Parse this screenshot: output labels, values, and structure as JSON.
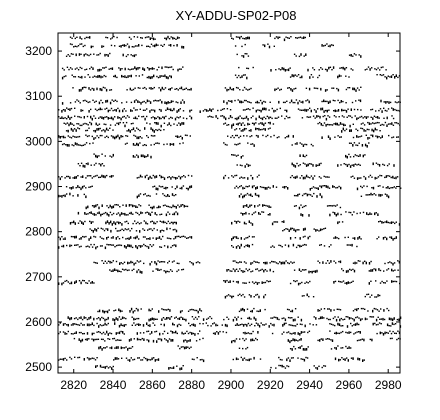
{
  "chart_data": {
    "type": "scatter",
    "title": "XY-ADDU-SP02-P08",
    "xlabel": "",
    "ylabel": "",
    "xlim": [
      2812,
      2986
    ],
    "ylim": [
      2487,
      3240
    ],
    "xticks": [
      2820,
      2840,
      2860,
      2880,
      2900,
      2920,
      2940,
      2960,
      2980
    ],
    "yticks": [
      2500,
      2600,
      2700,
      2800,
      2900,
      3000,
      3100,
      3200
    ],
    "grid": false,
    "marker": "black dot",
    "rows": [
      {
        "y": 3231,
        "segments": [
          [
            2818,
            2828
          ],
          [
            2836,
            2842
          ],
          [
            2848,
            2862
          ],
          [
            2866,
            2874
          ],
          [
            2900,
            2912
          ],
          [
            2922,
            2938
          ]
        ]
      },
      {
        "y": 3214,
        "segments": [
          [
            2818,
            2830
          ],
          [
            2834,
            2876
          ],
          [
            2902,
            2908
          ],
          [
            2916,
            2922
          ],
          [
            2946,
            2952
          ]
        ]
      },
      {
        "y": 3193,
        "segments": [
          [
            2816,
            2838
          ],
          [
            2844,
            2852
          ],
          [
            2902,
            2910
          ],
          [
            2932,
            2938
          ],
          [
            2960,
            2966
          ]
        ]
      },
      {
        "y": 3163,
        "segments": [
          [
            2814,
            2830
          ],
          [
            2832,
            2876
          ],
          [
            2902,
            2912
          ],
          [
            2920,
            2930
          ],
          [
            2938,
            2962
          ],
          [
            2968,
            2980
          ]
        ]
      },
      {
        "y": 3146,
        "segments": [
          [
            2814,
            2836
          ],
          [
            2840,
            2870
          ],
          [
            2902,
            2908
          ],
          [
            2930,
            2946
          ],
          [
            2954,
            2960
          ],
          [
            2974,
            2986
          ]
        ]
      },
      {
        "y": 3118,
        "segments": [
          [
            2816,
            2840
          ],
          [
            2846,
            2880
          ],
          [
            2896,
            2910
          ],
          [
            2922,
            2934
          ],
          [
            2938,
            2966
          ]
        ]
      },
      {
        "y": 3090,
        "segments": [
          [
            2814,
            2876
          ],
          [
            2896,
            2920
          ],
          [
            2924,
            2940
          ],
          [
            2946,
            2966
          ],
          [
            2976,
            2986
          ]
        ]
      },
      {
        "y": 3072,
        "segments": [
          [
            2812,
            2880
          ],
          [
            2884,
            2900
          ],
          [
            2906,
            2928
          ],
          [
            2934,
            2966
          ],
          [
            2970,
            2986
          ]
        ]
      },
      {
        "y": 3055,
        "segments": [
          [
            2812,
            2880
          ],
          [
            2888,
            2930
          ],
          [
            2936,
            2984
          ]
        ]
      },
      {
        "y": 3040,
        "segments": [
          [
            2814,
            2850
          ],
          [
            2856,
            2876
          ],
          [
            2896,
            2922
          ],
          [
            2944,
            2962
          ],
          [
            2966,
            2986
          ]
        ]
      },
      {
        "y": 3028,
        "segments": [
          [
            2816,
            2840
          ],
          [
            2846,
            2866
          ],
          [
            2900,
            2920
          ],
          [
            2956,
            2976
          ]
        ]
      },
      {
        "y": 3012,
        "segments": [
          [
            2812,
            2862
          ],
          [
            2870,
            2880
          ],
          [
            2898,
            2932
          ],
          [
            2946,
            2956
          ],
          [
            2962,
            2986
          ]
        ]
      },
      {
        "y": 2995,
        "segments": [
          [
            2814,
            2830
          ],
          [
            2846,
            2876
          ],
          [
            2896,
            2912
          ],
          [
            2930,
            2942
          ],
          [
            2960,
            2970
          ]
        ]
      },
      {
        "y": 2970,
        "segments": [
          [
            2830,
            2840
          ],
          [
            2850,
            2860
          ],
          [
            2900,
            2908
          ],
          [
            2934,
            2940
          ],
          [
            2958,
            2968
          ]
        ]
      },
      {
        "y": 2950,
        "segments": [
          [
            2822,
            2836
          ],
          [
            2902,
            2910
          ],
          [
            2930,
            2946
          ],
          [
            2954,
            2966
          ],
          [
            2972,
            2984
          ]
        ]
      },
      {
        "y": 2923,
        "segments": [
          [
            2812,
            2840
          ],
          [
            2852,
            2880
          ],
          [
            2896,
            2914
          ],
          [
            2930,
            2950
          ],
          [
            2960,
            2986
          ]
        ]
      },
      {
        "y": 2900,
        "segments": [
          [
            2816,
            2830
          ],
          [
            2860,
            2880
          ],
          [
            2900,
            2930
          ],
          [
            2940,
            2956
          ],
          [
            2964,
            2986
          ]
        ]
      },
      {
        "y": 2883,
        "segments": [
          [
            2812,
            2826
          ],
          [
            2852,
            2872
          ],
          [
            2904,
            2914
          ],
          [
            2932,
            2946
          ],
          [
            2966,
            2980
          ]
        ]
      },
      {
        "y": 2858,
        "segments": [
          [
            2826,
            2854
          ],
          [
            2858,
            2878
          ],
          [
            2906,
            2920
          ],
          [
            2932,
            2938
          ],
          [
            2948,
            2956
          ]
        ]
      },
      {
        "y": 2842,
        "segments": [
          [
            2822,
            2874
          ],
          [
            2904,
            2922
          ],
          [
            2932,
            2940
          ],
          [
            2950,
            2976
          ]
        ]
      },
      {
        "y": 2822,
        "segments": [
          [
            2818,
            2830
          ],
          [
            2836,
            2872
          ],
          [
            2900,
            2912
          ],
          [
            2920,
            2930
          ],
          [
            2954,
            2958
          ],
          [
            2974,
            2986
          ]
        ]
      },
      {
        "y": 2806,
        "segments": [
          [
            2828,
            2872
          ],
          [
            2926,
            2938
          ],
          [
            2942,
            2948
          ]
        ]
      },
      {
        "y": 2788,
        "segments": [
          [
            2812,
            2880
          ],
          [
            2900,
            2912
          ],
          [
            2930,
            2940
          ],
          [
            2952,
            2966
          ],
          [
            2974,
            2984
          ]
        ]
      },
      {
        "y": 2770,
        "segments": [
          [
            2812,
            2824
          ],
          [
            2826,
            2872
          ],
          [
            2900,
            2912
          ],
          [
            2920,
            2938
          ],
          [
            2944,
            2952
          ],
          [
            2958,
            2964
          ]
        ]
      },
      {
        "y": 2734,
        "segments": [
          [
            2830,
            2874
          ],
          [
            2878,
            2884
          ],
          [
            2900,
            2932
          ],
          [
            2944,
            2956
          ],
          [
            2962,
            2972
          ],
          [
            2978,
            2986
          ]
        ]
      },
      {
        "y": 2716,
        "segments": [
          [
            2838,
            2856
          ],
          [
            2860,
            2876
          ],
          [
            2896,
            2922
          ],
          [
            2932,
            2946
          ],
          [
            2956,
            2964
          ],
          [
            2970,
            2986
          ]
        ]
      },
      {
        "y": 2690,
        "segments": [
          [
            2812,
            2830
          ],
          [
            2896,
            2920
          ],
          [
            2930,
            2940
          ],
          [
            2952,
            2962
          ],
          [
            2970,
            2986
          ]
        ]
      },
      {
        "y": 2660,
        "segments": [
          [
            2896,
            2918
          ],
          [
            2936,
            2942
          ],
          [
            2968,
            2976
          ]
        ]
      },
      {
        "y": 2628,
        "segments": [
          [
            2832,
            2854
          ],
          [
            2858,
            2870
          ],
          [
            2874,
            2886
          ],
          [
            2904,
            2918
          ],
          [
            2926,
            2934
          ],
          [
            2944,
            2956
          ],
          [
            2962,
            2980
          ]
        ]
      },
      {
        "y": 2610,
        "segments": [
          [
            2816,
            2854
          ],
          [
            2858,
            2878
          ],
          [
            2880,
            2890
          ],
          [
            2896,
            2914
          ],
          [
            2920,
            2936
          ],
          [
            2942,
            2986
          ]
        ]
      },
      {
        "y": 2596,
        "segments": [
          [
            2812,
            2868
          ],
          [
            2870,
            2898
          ],
          [
            2902,
            2922
          ],
          [
            2926,
            2944
          ],
          [
            2950,
            2966
          ],
          [
            2972,
            2986
          ]
        ]
      },
      {
        "y": 2578,
        "segments": [
          [
            2812,
            2846
          ],
          [
            2852,
            2884
          ],
          [
            2890,
            2898
          ],
          [
            2906,
            2914
          ],
          [
            2920,
            2940
          ],
          [
            2950,
            2966
          ],
          [
            2974,
            2986
          ]
        ]
      },
      {
        "y": 2562,
        "segments": [
          [
            2820,
            2844
          ],
          [
            2848,
            2870
          ],
          [
            2874,
            2886
          ],
          [
            2900,
            2914
          ],
          [
            2928,
            2936
          ],
          [
            2944,
            2952
          ],
          [
            2964,
            2972
          ],
          [
            2980,
            2986
          ]
        ]
      },
      {
        "y": 2545,
        "segments": [
          [
            2830,
            2850
          ],
          [
            2872,
            2880
          ],
          [
            2904,
            2910
          ],
          [
            2930,
            2940
          ],
          [
            2950,
            2962
          ]
        ]
      },
      {
        "y": 2520,
        "segments": [
          [
            2812,
            2832
          ],
          [
            2840,
            2864
          ],
          [
            2880,
            2886
          ],
          [
            2900,
            2916
          ],
          [
            2924,
            2940
          ],
          [
            2952,
            2968
          ]
        ]
      },
      {
        "y": 2502,
        "segments": [
          [
            2830,
            2840
          ],
          [
            2868,
            2876
          ],
          [
            2920,
            2930
          ],
          [
            2942,
            2948
          ]
        ]
      }
    ]
  }
}
